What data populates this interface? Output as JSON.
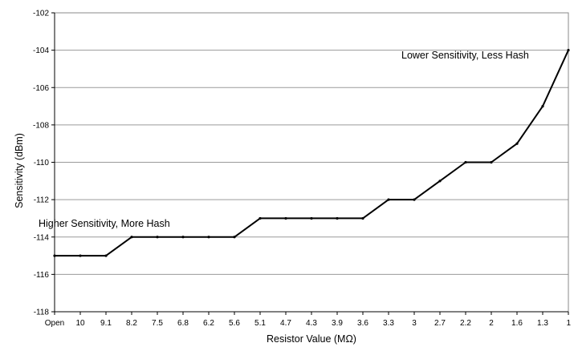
{
  "chart_data": {
    "type": "line",
    "title": "",
    "xlabel": "Resistor Value (MΩ)",
    "ylabel": "Sensitivity (dBm)",
    "categories": [
      "Open",
      "10",
      "9.1",
      "8.2",
      "7.5",
      "6.8",
      "6.2",
      "5.6",
      "5.1",
      "4.7",
      "4.3",
      "3.9",
      "3.6",
      "3.3",
      "3",
      "2.7",
      "2.2",
      "2",
      "1.6",
      "1.3",
      "1"
    ],
    "values": [
      -115,
      -115,
      -115,
      -114,
      -114,
      -114,
      -114,
      -114,
      -113,
      -113,
      -113,
      -113,
      -113,
      -112,
      -112,
      -111,
      -110,
      -110,
      -109,
      -107,
      -104
    ],
    "ylim": [
      -118,
      -102
    ],
    "yticks": [
      -102,
      -104,
      -106,
      -108,
      -110,
      -112,
      -114,
      -116,
      -118
    ],
    "grid": true,
    "line_color": "#000000",
    "annotations": [
      {
        "text": "Lower Sensitivity, Less Hash"
      },
      {
        "text": "Higher Sensitivity, More Hash"
      }
    ]
  }
}
